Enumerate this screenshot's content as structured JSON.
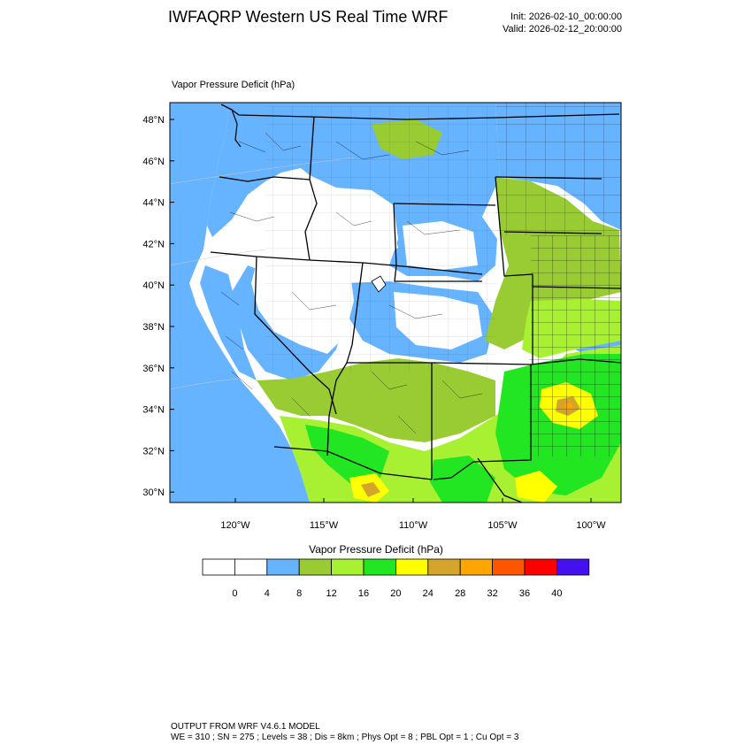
{
  "header": {
    "title": "IWFAQRP Western US Real Time WRF",
    "init": "Init: 2026-02-10_00:00:00",
    "valid": "Valid: 2026-02-12_20:00:00"
  },
  "map": {
    "label": "Vapor Pressure Deficit   (hPa)",
    "lat_labels": [
      "48°N",
      "46°N",
      "44°N",
      "42°N",
      "40°N",
      "38°N",
      "36°N",
      "34°N",
      "32°N",
      "30°N"
    ],
    "lon_labels": [
      "120°W",
      "115°W",
      "110°W",
      "105°W",
      "100°W"
    ],
    "colors": {
      "land": "#ffffff",
      "ocean": "#66b3ff",
      "bin_8": "#66b3ff",
      "bin_12": "#99cc33",
      "bin_16": "#a8f032",
      "bin_20": "#22e622",
      "bin_24": "#ffff00",
      "bin_28": "#d4a52a",
      "bin_32": "#ffa500"
    }
  },
  "colorbar": {
    "title": "Vapor Pressure Deficit  (hPa)",
    "colors": [
      "#ffffff",
      "#ffffff",
      "#66b3ff",
      "#99cc33",
      "#a8f032",
      "#22e622",
      "#ffff00",
      "#d4a52a",
      "#ffa500",
      "#ff5500",
      "#ff0000",
      "#4411ee"
    ],
    "labels": [
      "0",
      "4",
      "8",
      "12",
      "16",
      "20",
      "24",
      "28",
      "32",
      "36",
      "40"
    ]
  },
  "footer": {
    "line1": "OUTPUT FROM WRF V4.6.1 MODEL",
    "line2": "WE = 310 ; SN = 275 ; Levels = 38 ; Dis = 8km ; Phys Opt = 8 ; PBL Opt = 1 ; Cu Opt = 3"
  }
}
